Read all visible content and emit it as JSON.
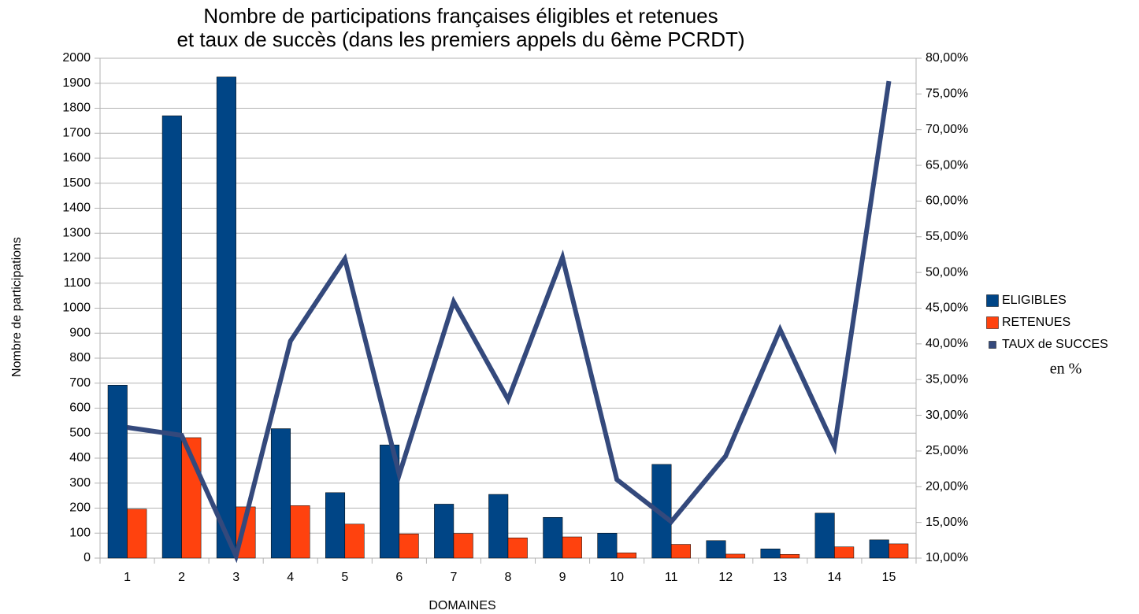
{
  "chart_data": {
    "type": "bar",
    "title": [
      "Nombre de participations françaises éligibles et retenues",
      "et taux de succès (dans les premiers appels du 6ème PCRDT)"
    ],
    "y_label": "Nombre de participations",
    "x_label": "DOMAINES",
    "annotation": "en %",
    "categories": [
      "1",
      "2",
      "3",
      "4",
      "5",
      "6",
      "7",
      "8",
      "9",
      "10",
      "11",
      "12",
      "13",
      "14",
      "15"
    ],
    "series": [
      {
        "name": "ELIGIBLES",
        "color": "#004586",
        "values": [
          692,
          1770,
          1925,
          518,
          262,
          453,
          216,
          255,
          163,
          100,
          375,
          70,
          37,
          180,
          73
        ]
      },
      {
        "name": "RETENUES",
        "color": "#ff420e",
        "values": [
          196,
          482,
          205,
          210,
          136,
          97,
          99,
          81,
          85,
          21,
          55,
          16,
          15,
          45,
          57
        ]
      },
      {
        "name": "TAUX de SUCCES",
        "color": "#34497c",
        "type": "line",
        "axis": "y2",
        "values": [
          28.3,
          27.2,
          10.3,
          40.4,
          51.9,
          21.7,
          45.9,
          32.2,
          52.1,
          21.0,
          15.1,
          24.3,
          42.0,
          25.6,
          76.8
        ]
      }
    ],
    "ylim": [
      0,
      2000
    ],
    "yticks": [
      0,
      100,
      200,
      300,
      400,
      500,
      600,
      700,
      800,
      900,
      1000,
      1100,
      1200,
      1300,
      1400,
      1500,
      1600,
      1700,
      1800,
      1900,
      2000
    ],
    "y2lim": [
      10,
      80
    ],
    "y2ticks": [
      {
        "value": 10,
        "label": "10,00%"
      },
      {
        "value": 15,
        "label": "15,00%"
      },
      {
        "value": 20,
        "label": "20,00%"
      },
      {
        "value": 25,
        "label": "25,00%"
      },
      {
        "value": 30,
        "label": "30,00%"
      },
      {
        "value": 35,
        "label": "35,00%"
      },
      {
        "value": 40,
        "label": "40,00%"
      },
      {
        "value": 45,
        "label": "45,00%"
      },
      {
        "value": 50,
        "label": "50,00%"
      },
      {
        "value": 55,
        "label": "55,00%"
      },
      {
        "value": 60,
        "label": "60,00%"
      },
      {
        "value": 65,
        "label": "65,00%"
      },
      {
        "value": 70,
        "label": "70,00%"
      },
      {
        "value": 75,
        "label": "75,00%"
      },
      {
        "value": 80,
        "label": "80,00%"
      }
    ],
    "grid": true,
    "legend": "right"
  }
}
